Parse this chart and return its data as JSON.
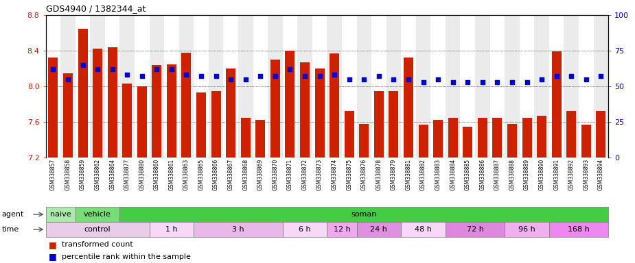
{
  "title": "GDS4940 / 1382344_at",
  "samples": [
    "GSM338857",
    "GSM338858",
    "GSM338859",
    "GSM338862",
    "GSM338864",
    "GSM338877",
    "GSM338880",
    "GSM338860",
    "GSM338861",
    "GSM338863",
    "GSM338865",
    "GSM338866",
    "GSM338867",
    "GSM338868",
    "GSM338869",
    "GSM338870",
    "GSM338871",
    "GSM338872",
    "GSM338873",
    "GSM338874",
    "GSM338875",
    "GSM338876",
    "GSM338878",
    "GSM338879",
    "GSM338881",
    "GSM338882",
    "GSM338883",
    "GSM338884",
    "GSM338885",
    "GSM338886",
    "GSM338887",
    "GSM338888",
    "GSM338889",
    "GSM338890",
    "GSM338891",
    "GSM338892",
    "GSM338893",
    "GSM338894"
  ],
  "bar_values": [
    8.32,
    8.15,
    8.65,
    8.42,
    8.44,
    8.03,
    8.0,
    8.24,
    8.25,
    8.38,
    7.93,
    7.95,
    8.2,
    7.65,
    7.62,
    8.3,
    8.4,
    8.27,
    8.2,
    8.37,
    7.72,
    7.58,
    7.95,
    7.95,
    8.32,
    7.57,
    7.62,
    7.65,
    7.55,
    7.65,
    7.65,
    7.58,
    7.65,
    7.67,
    8.39,
    7.72,
    7.57,
    7.72
  ],
  "percentile_values": [
    62,
    55,
    65,
    62,
    62,
    58,
    57,
    62,
    62,
    58,
    57,
    57,
    55,
    55,
    57,
    57,
    62,
    57,
    57,
    58,
    55,
    55,
    57,
    55,
    55,
    53,
    55,
    53,
    53,
    53,
    53,
    53,
    53,
    55,
    57,
    57,
    55,
    57
  ],
  "bar_color": "#cc2200",
  "dot_color": "#0000cc",
  "ymin": 7.2,
  "ymax": 8.8,
  "yticks_left": [
    7.2,
    7.6,
    8.0,
    8.4,
    8.8
  ],
  "y2min": 0,
  "y2max": 100,
  "yticks_right": [
    0,
    25,
    50,
    75,
    100
  ],
  "agent_groups": [
    {
      "label": "naive",
      "start": 0,
      "end": 2,
      "color": "#aaeaaa"
    },
    {
      "label": "vehicle",
      "start": 2,
      "end": 5,
      "color": "#77dd77"
    },
    {
      "label": "soman",
      "start": 5,
      "end": 38,
      "color": "#44cc44"
    }
  ],
  "time_groups": [
    {
      "label": "control",
      "start": 0,
      "end": 7,
      "color": "#e8cce8"
    },
    {
      "label": "1 h",
      "start": 7,
      "end": 10,
      "color": "#f8d8f8"
    },
    {
      "label": "3 h",
      "start": 10,
      "end": 16,
      "color": "#e8b8e8"
    },
    {
      "label": "6 h",
      "start": 16,
      "end": 19,
      "color": "#f8d8f8"
    },
    {
      "label": "12 h",
      "start": 19,
      "end": 21,
      "color": "#f0a8f0"
    },
    {
      "label": "24 h",
      "start": 21,
      "end": 24,
      "color": "#e090e0"
    },
    {
      "label": "48 h",
      "start": 24,
      "end": 27,
      "color": "#f8d8f8"
    },
    {
      "label": "72 h",
      "start": 27,
      "end": 31,
      "color": "#dd88dd"
    },
    {
      "label": "96 h",
      "start": 31,
      "end": 34,
      "color": "#f0b0f0"
    },
    {
      "label": "168 h",
      "start": 34,
      "end": 38,
      "color": "#ee88ee"
    }
  ],
  "legend_bar_label": "transformed count",
  "legend_dot_label": "percentile rank within the sample",
  "agent_label": "agent",
  "time_label": "time",
  "bg_colors": [
    "#ffffff",
    "#ebebeb"
  ]
}
